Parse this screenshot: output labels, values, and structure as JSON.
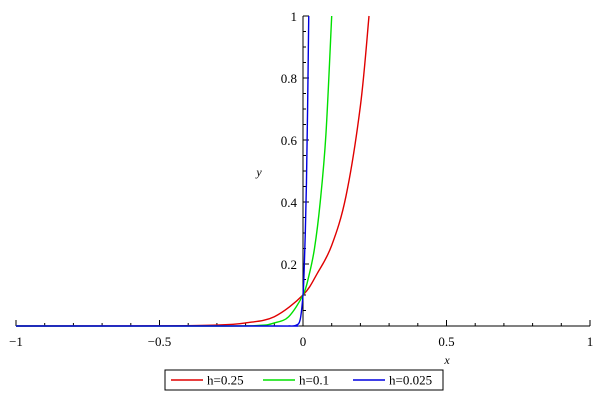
{
  "chart_data": {
    "type": "line",
    "title": "",
    "xlabel": "x",
    "ylabel": "y",
    "xlim": [
      -1,
      1
    ],
    "ylim": [
      0,
      1
    ],
    "x_ticks": [
      {
        "value": -1,
        "label": "−1"
      },
      {
        "value": -0.5,
        "label": "−0.5"
      },
      {
        "value": 0,
        "label": "0"
      },
      {
        "value": 0.5,
        "label": "0.5"
      },
      {
        "value": 1,
        "label": "1"
      }
    ],
    "y_ticks": [
      {
        "value": 0.2,
        "label": "0.2"
      },
      {
        "value": 0.4,
        "label": "0.4"
      },
      {
        "value": 0.6,
        "label": "0.6"
      },
      {
        "value": 0.8,
        "label": "0.8"
      },
      {
        "value": 1,
        "label": "1"
      }
    ],
    "series": [
      {
        "name": "h=0.25",
        "color": "#e00000",
        "x": [
          -1,
          -0.5,
          -0.3,
          -0.2,
          -0.1,
          0,
          0.05,
          0.1,
          0.15,
          0.2,
          0.23
        ],
        "y": [
          0.0,
          0.0005,
          0.003,
          0.01,
          0.03,
          0.1,
          0.17,
          0.26,
          0.42,
          0.71,
          1.0
        ]
      },
      {
        "name": "h=0.1",
        "color": "#00e000",
        "x": [
          -1,
          -0.3,
          -0.15,
          -0.1,
          -0.05,
          0,
          0.02,
          0.04,
          0.06,
          0.08,
          0.1
        ],
        "y": [
          0.0,
          0.0,
          0.002,
          0.01,
          0.03,
          0.1,
          0.16,
          0.25,
          0.4,
          0.62,
          1.0
        ]
      },
      {
        "name": "h=0.025",
        "color": "#0000e0",
        "x": [
          -1,
          -0.1,
          -0.05,
          -0.025,
          -0.01,
          0,
          0.004,
          0.008,
          0.012,
          0.016,
          0.02
        ],
        "y": [
          0.0,
          0.0,
          0.0,
          0.002,
          0.02,
          0.1,
          0.18,
          0.3,
          0.46,
          0.7,
          1.0
        ]
      }
    ],
    "grid": false,
    "legend_position": "bottom-center"
  }
}
